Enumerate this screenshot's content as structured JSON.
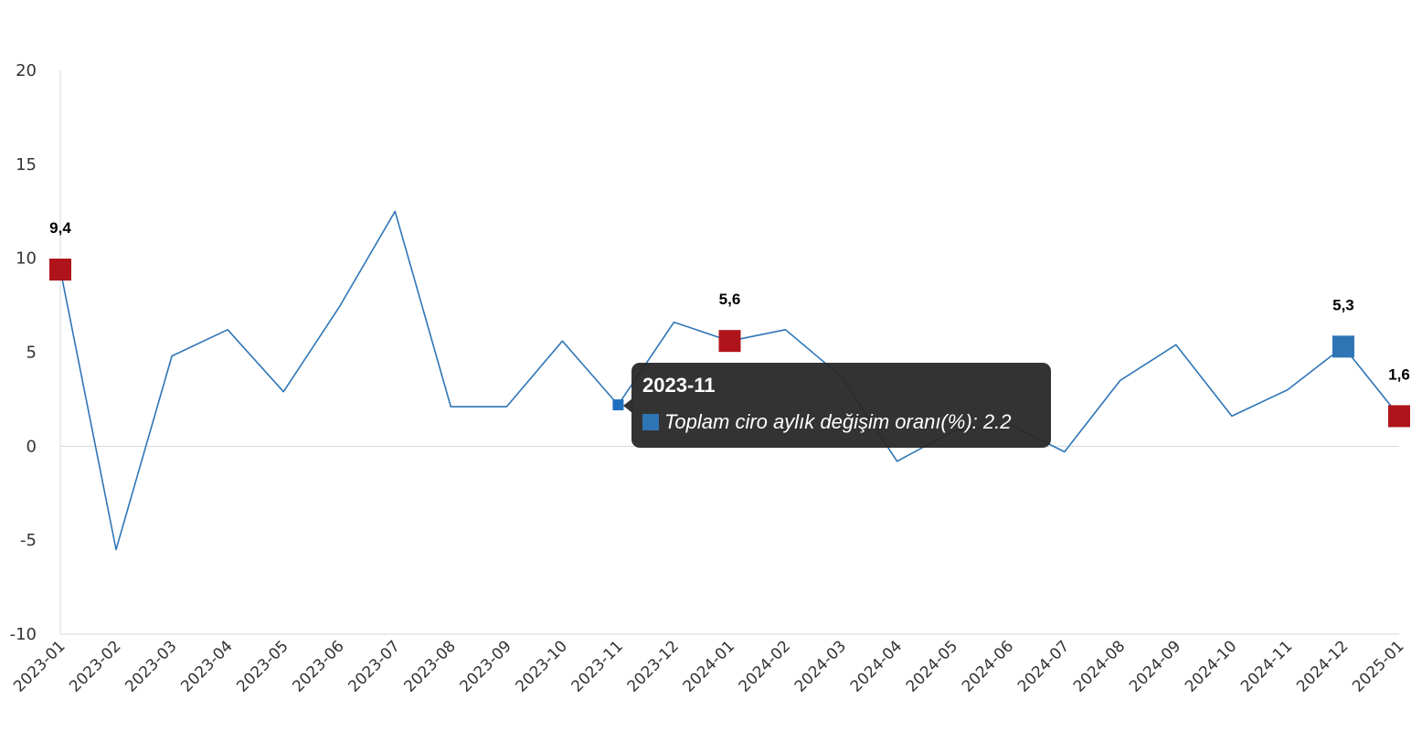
{
  "chart_data": {
    "type": "line",
    "title": "",
    "xlabel": "",
    "ylabel": "",
    "ylim": [
      -10,
      20
    ],
    "yticks": [
      20,
      15,
      10,
      5,
      0,
      -5,
      -10
    ],
    "grid": false,
    "categories": [
      "2023-01",
      "2023-02",
      "2023-03",
      "2023-04",
      "2023-05",
      "2023-06",
      "2023-07",
      "2023-08",
      "2023-09",
      "2023-10",
      "2023-11",
      "2023-12",
      "2024-01",
      "2024-02",
      "2024-03",
      "2024-04",
      "2024-05",
      "2024-06",
      "2024-07",
      "2024-08",
      "2024-09",
      "2024-10",
      "2024-11",
      "2024-12",
      "2025-01"
    ],
    "series": [
      {
        "name": "Toplam ciro aylık değişim oranı(%)",
        "color": "#2e75b6",
        "values": [
          9.4,
          -5.5,
          4.8,
          6.2,
          2.9,
          7.4,
          12.5,
          2.1,
          2.1,
          5.6,
          2.2,
          6.6,
          5.6,
          6.2,
          3.7,
          -0.8,
          0.8,
          1.2,
          -0.3,
          3.5,
          5.4,
          1.6,
          3.0,
          5.3,
          1.6
        ]
      }
    ],
    "highlighted_points": [
      {
        "category": "2023-01",
        "label": "9,4",
        "color": "#b0141b"
      },
      {
        "category": "2024-01",
        "label": "5,6",
        "color": "#b0141b"
      },
      {
        "category": "2024-12",
        "label": "5,3",
        "color": "#2e75b6"
      },
      {
        "category": "2025-01",
        "label": "1,6",
        "color": "#b0141b"
      }
    ],
    "hover_point": {
      "category": "2023-11",
      "color": "#1f6fc0"
    }
  },
  "tooltip": {
    "title": "2023-11",
    "text": "Toplam ciro aylık değişim oranı(%): 2.2",
    "swatch_color": "#2e75b6"
  }
}
